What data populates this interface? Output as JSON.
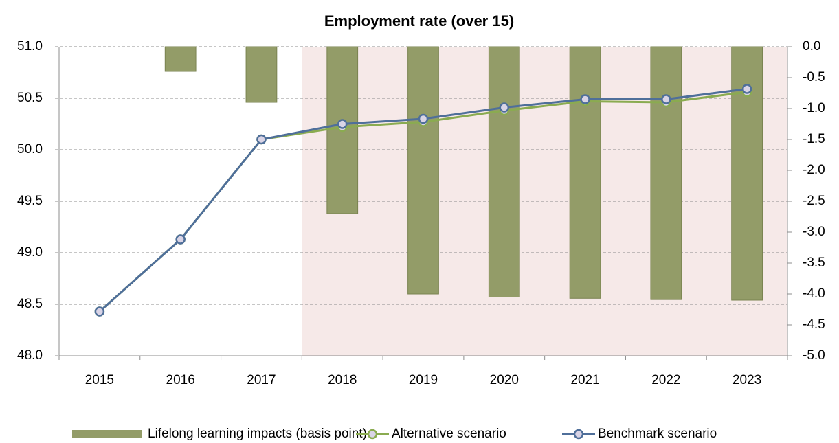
{
  "chart_data": {
    "type": "bar-line",
    "title": "Employment rate (over 15)",
    "categories": [
      "2015",
      "2016",
      "2017",
      "2018",
      "2019",
      "2020",
      "2021",
      "2022",
      "2023"
    ],
    "series": [
      {
        "name": "Lifelong learning impacts (basis point)",
        "type": "bar",
        "axis": "y2",
        "color": "#939c68",
        "values": [
          null,
          -0.4,
          -0.9,
          -2.7,
          -4.0,
          -4.05,
          -4.07,
          -4.09,
          -4.1
        ]
      },
      {
        "name": "Alternative scenario",
        "type": "line",
        "color": "#8aab50",
        "values": [
          48.43,
          49.13,
          50.1,
          50.22,
          50.27,
          50.38,
          50.47,
          50.46,
          50.56
        ]
      },
      {
        "name": "Benchmark scenario",
        "type": "line",
        "color": "#4f6f9a",
        "values": [
          48.43,
          49.13,
          50.1,
          50.25,
          50.3,
          50.41,
          50.49,
          50.49,
          50.59
        ]
      }
    ],
    "ylim": [
      48,
      51
    ],
    "yticks": [
      {
        "value": 48,
        "label": "48.0"
      },
      {
        "value": 48.5,
        "label": "48.5"
      },
      {
        "value": 49,
        "label": "49.0"
      },
      {
        "value": 49.5,
        "label": "49.5"
      },
      {
        "value": 50,
        "label": "50.0"
      },
      {
        "value": 50.5,
        "label": "50.5"
      },
      {
        "value": 51,
        "label": "51.0"
      }
    ],
    "y2lim": [
      -5,
      0
    ],
    "y2ticks": [
      {
        "value": -5,
        "label": "-5.0"
      },
      -4.5,
      {
        "value": -4,
        "label": "-4.0"
      },
      -3.5,
      {
        "value": -3,
        "label": "-3.0"
      },
      -2.5,
      {
        "value": -2,
        "label": "-2.0"
      },
      -1.5,
      {
        "value": -1,
        "label": "-1.0"
      },
      -0.5,
      {
        "value": 0,
        "label": "0.0"
      }
    ],
    "grid": true,
    "legend": "bottom"
  }
}
